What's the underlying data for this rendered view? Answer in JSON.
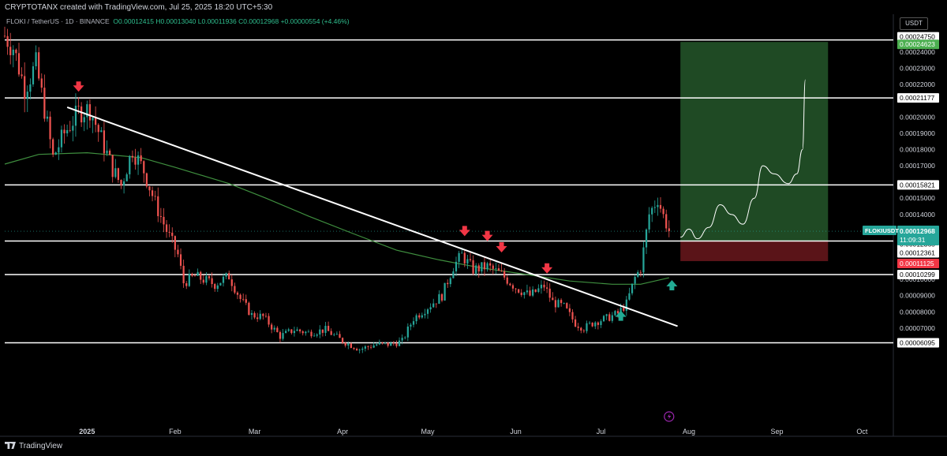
{
  "header": {
    "creator": "CRYPTOTANX created with TradingView.com, Jul 25, 2025 18:20 UTC+5:30",
    "symbol": "FLOKI / TetherUS · 1D · BINANCE",
    "ohlc_open": "O0.00012415",
    "ohlc_high": "H0.00013040",
    "ohlc_low": "L0.00011936",
    "ohlc_close": "C0.00012968",
    "change": "+0.00000554 (+4.46%)"
  },
  "currency_button": "USDT",
  "footer": {
    "brand": "TradingView"
  },
  "colors": {
    "up": "#26a69a",
    "down": "#ef5350",
    "ma": "#3f8f3f",
    "target_zone": "#1f4a24",
    "stop_zone": "#5a1418",
    "level_line": "#ffffff"
  },
  "chart_data": {
    "type": "candlestick",
    "ylim": [
      5.8e-06,
      0.0002575
    ],
    "y_ticks": [
      "0.00024000",
      "0.00023000",
      "0.00022000",
      "0.00020000",
      "0.00019000",
      "0.00018000",
      "0.00017000",
      "0.00015000",
      "0.00014000",
      "0.00010000",
      "0.00009000",
      "0.00008000",
      "0.00007000"
    ],
    "x_ticks": [
      "2025",
      "Feb",
      "Mar",
      "Apr",
      "May",
      "Jun",
      "Jul",
      "Aug",
      "Sep",
      "Oct"
    ],
    "x_tick_dates": [
      "2025-01-01",
      "2025-02-01",
      "2025-03-01",
      "2025-04-01",
      "2025-05-01",
      "2025-06-01",
      "2025-07-01",
      "2025-08-01",
      "2025-09-01",
      "2025-10-01"
    ],
    "x_range": [
      "2024-12-03",
      "2025-10-12"
    ],
    "levels": [
      {
        "value": 0.0002475,
        "label": "0.00024750",
        "bg": "#ffffff",
        "fg": "#000000"
      },
      {
        "value": 0.00024623,
        "label": "0.00024623",
        "bg": "#4caf50",
        "fg": "#ffffff"
      },
      {
        "value": 0.00021177,
        "label": "0.00021177",
        "bg": "#ffffff",
        "fg": "#000000"
      },
      {
        "value": 0.00015821,
        "label": "0.00015821",
        "bg": "#ffffff",
        "fg": "#000000"
      },
      {
        "value": 0.00012365,
        "label": "0.00012365",
        "bg": "#ffffff",
        "fg": "#000000"
      },
      {
        "value": 0.00012361,
        "label": "0.00012361",
        "bg": "#ffffff",
        "fg": "#000000"
      },
      {
        "value": 0.00011125,
        "label": "0.00011125",
        "bg": "#f23645",
        "fg": "#ffffff"
      },
      {
        "value": 0.00010299,
        "label": "0.00010299",
        "bg": "#ffffff",
        "fg": "#000000"
      },
      {
        "value": 6.095e-05,
        "label": "0.00006095",
        "bg": "#ffffff",
        "fg": "#000000"
      }
    ],
    "last_price": {
      "symbol": "FLOKIUSDT",
      "value": 0.00012968,
      "label": "0.00012968",
      "countdown": "11:09:31"
    },
    "trendline": [
      [
        "2024-12-25",
        0.000206
      ],
      [
        "2025-07-28",
        7.12e-05
      ]
    ],
    "position": {
      "start": "2025-07-29",
      "end": "2025-09-19",
      "entry": 0.00012365,
      "target": 0.00024623,
      "stop": 0.00011125
    },
    "projection": [
      [
        "2025-07-29",
        0.000126
      ],
      [
        "2025-08-01",
        0.000131
      ],
      [
        "2025-08-04",
        0.000125
      ],
      [
        "2025-08-08",
        0.000132
      ],
      [
        "2025-08-12",
        0.000146
      ],
      [
        "2025-08-16",
        0.00014
      ],
      [
        "2025-08-20",
        0.000134
      ],
      [
        "2025-08-24",
        0.00015
      ],
      [
        "2025-08-27",
        0.00017
      ],
      [
        "2025-08-31",
        0.000165
      ],
      [
        "2025-09-05",
        0.000159
      ],
      [
        "2025-09-08",
        0.000165
      ],
      [
        "2025-09-10",
        0.00018
      ],
      [
        "2025-09-11",
        0.000223
      ]
    ],
    "sell_arrows": [
      [
        "2024-12-29",
        0.000219
      ],
      [
        "2025-05-14",
        0.00013
      ],
      [
        "2025-05-22",
        0.000127
      ],
      [
        "2025-05-27",
        0.00012
      ],
      [
        "2025-06-12",
        0.000107
      ]
    ],
    "buy_arrows": [
      [
        "2025-07-08",
        7.74e-05
      ],
      [
        "2025-07-26",
        9.62e-05
      ]
    ],
    "ma_points": [
      [
        "2024-12-03",
        0.000171
      ],
      [
        "2024-12-15",
        0.000177
      ],
      [
        "2025-01-01",
        0.000178
      ],
      [
        "2025-01-20",
        0.000175
      ],
      [
        "2025-02-01",
        0.000169
      ],
      [
        "2025-02-20",
        0.000159
      ],
      [
        "2025-03-05",
        0.00015
      ],
      [
        "2025-03-20",
        0.000139
      ],
      [
        "2025-04-05",
        0.000128
      ],
      [
        "2025-04-20",
        0.000118
      ],
      [
        "2025-05-05",
        0.000112
      ],
      [
        "2025-05-20",
        0.000107
      ],
      [
        "2025-06-05",
        0.000103
      ],
      [
        "2025-06-20",
        9.9e-05
      ],
      [
        "2025-07-05",
        9.7e-05
      ],
      [
        "2025-07-15",
        9.7e-05
      ],
      [
        "2025-07-25",
        0.000101
      ]
    ],
    "price_points": [
      [
        "2024-12-03",
        0.00025
      ],
      [
        "2024-12-06",
        0.000243
      ],
      [
        "2024-12-10",
        0.000218
      ],
      [
        "2024-12-14",
        0.000232
      ],
      [
        "2024-12-17",
        0.000205
      ],
      [
        "2024-12-20",
        0.000175
      ],
      [
        "2024-12-24",
        0.00019
      ],
      [
        "2024-12-29",
        0.000203
      ],
      [
        "2025-01-02",
        0.000205
      ],
      [
        "2025-01-07",
        0.000182
      ],
      [
        "2025-01-10",
        0.000168
      ],
      [
        "2025-01-13",
        0.000158
      ],
      [
        "2025-01-17",
        0.00018
      ],
      [
        "2025-01-21",
        0.000167
      ],
      [
        "2025-01-25",
        0.000147
      ],
      [
        "2025-01-29",
        0.00013
      ],
      [
        "2025-02-02",
        0.000115
      ],
      [
        "2025-02-04",
        9.8e-05
      ],
      [
        "2025-02-08",
        0.000102
      ],
      [
        "2025-02-15",
        9.7e-05
      ],
      [
        "2025-02-20",
        0.000102
      ],
      [
        "2025-02-24",
        8.8e-05
      ],
      [
        "2025-02-28",
        7.8e-05
      ],
      [
        "2025-03-04",
        7.7e-05
      ],
      [
        "2025-03-10",
        6.5e-05
      ],
      [
        "2025-03-15",
        6.9e-05
      ],
      [
        "2025-03-20",
        6.7e-05
      ],
      [
        "2025-03-26",
        6.9e-05
      ],
      [
        "2025-04-01",
        6.2e-05
      ],
      [
        "2025-04-07",
        5.7e-05
      ],
      [
        "2025-04-13",
        6e-05
      ],
      [
        "2025-04-18",
        6e-05
      ],
      [
        "2025-04-22",
        6.2e-05
      ],
      [
        "2025-04-26",
        7.6e-05
      ],
      [
        "2025-05-01",
        8.3e-05
      ],
      [
        "2025-05-06",
        9e-05
      ],
      [
        "2025-05-10",
        0.000108
      ],
      [
        "2025-05-13",
        0.000115
      ],
      [
        "2025-05-17",
        0.000106
      ],
      [
        "2025-05-22",
        0.000108
      ],
      [
        "2025-05-27",
        0.000103
      ],
      [
        "2025-06-01",
        9.5e-05
      ],
      [
        "2025-06-06",
        9e-05
      ],
      [
        "2025-06-11",
        9.6e-05
      ],
      [
        "2025-06-14",
        8.6e-05
      ],
      [
        "2025-06-18",
        8.3e-05
      ],
      [
        "2025-06-22",
        7.3e-05
      ],
      [
        "2025-06-25",
        7e-05
      ],
      [
        "2025-06-29",
        7.4e-05
      ],
      [
        "2025-07-03",
        7.6e-05
      ],
      [
        "2025-07-07",
        7.9e-05
      ],
      [
        "2025-07-10",
        8.5e-05
      ],
      [
        "2025-07-13",
        0.000101
      ],
      [
        "2025-07-15",
        0.000107
      ],
      [
        "2025-07-18",
        0.00014
      ],
      [
        "2025-07-21",
        0.00015
      ],
      [
        "2025-07-23",
        0.000139
      ],
      [
        "2025-07-25",
        0.00013
      ]
    ],
    "x_end_candles": "2025-07-25"
  }
}
